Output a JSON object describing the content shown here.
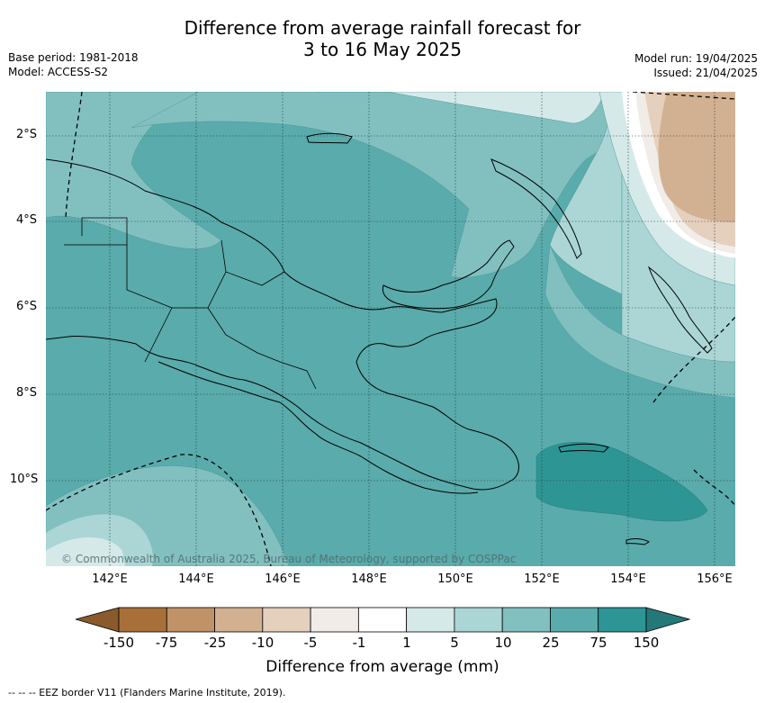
{
  "title_line1": "Difference from average rainfall forecast for",
  "title_line2": "3 to 16 May 2025",
  "base_period": "Base period: 1981-2018",
  "model": "Model: ACCESS-S2",
  "model_run": "Model run: 19/04/2025",
  "issued": "Issued: 21/04/2025",
  "copyright": "© Commonwealth of Australia 2025, Bureau of Meteorology, supported by COSPPac",
  "lat_labels": [
    "2°S",
    "4°S",
    "6°S",
    "8°S",
    "10°S"
  ],
  "lon_labels": [
    "142°E",
    "144°E",
    "146°E",
    "148°E",
    "150°E",
    "152°E",
    "154°E",
    "156°E"
  ],
  "legend": {
    "title": "Difference from average (mm)",
    "ticks": [
      "-150",
      "-75",
      "-25",
      "-10",
      "-5",
      "-1",
      "1",
      "5",
      "10",
      "25",
      "75",
      "150"
    ],
    "colors": [
      "#a87038",
      "#c09268",
      "#d2b193",
      "#e5cfbd",
      "#f2ece8",
      "#ffffff",
      "#d5e9e9",
      "#acd6d6",
      "#82c0c0",
      "#5aabab",
      "#2e9595"
    ],
    "extend_low_color": "#8a5a2c",
    "extend_high_color": "#247878"
  },
  "footnote": "-- -- -- EEZ border V11 (Flanders Marine Institute, 2019)."
}
